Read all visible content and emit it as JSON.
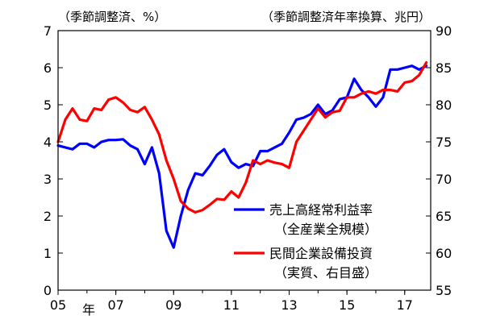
{
  "chart_data": {
    "type": "line",
    "title_left": "（季節調整済、%）",
    "title_right": "（季節調整済年率換算、兆円）",
    "x_unit_label": "年",
    "x_ticks": [
      {
        "x": 2005.0,
        "label": "05"
      },
      {
        "x": 2007.0,
        "label": "07"
      },
      {
        "x": 2009.0,
        "label": "09"
      },
      {
        "x": 2011.0,
        "label": "11"
      },
      {
        "x": 2013.0,
        "label": "13"
      },
      {
        "x": 2015.0,
        "label": "15"
      },
      {
        "x": 2017.0,
        "label": "17"
      }
    ],
    "xlim": [
      2005.0,
      2017.9
    ],
    "y_left": {
      "ticks": [
        0,
        1,
        2,
        3,
        4,
        5,
        6,
        7
      ],
      "lim": [
        0,
        7
      ]
    },
    "y_right": {
      "ticks": [
        55,
        60,
        65,
        70,
        75,
        80,
        85,
        90
      ],
      "lim": [
        55,
        90
      ]
    },
    "series": [
      {
        "name": "売上高経常利益率",
        "legend_lines": [
          "売上高経常利益率",
          "（全産業全規模）"
        ],
        "axis": "left",
        "color": "#0000ff",
        "x": [
          2005.0,
          2005.25,
          2005.5,
          2005.75,
          2006.0,
          2006.25,
          2006.5,
          2006.75,
          2007.0,
          2007.25,
          2007.5,
          2007.75,
          2008.0,
          2008.25,
          2008.5,
          2008.75,
          2009.0,
          2009.25,
          2009.5,
          2009.75,
          2010.0,
          2010.25,
          2010.5,
          2010.75,
          2011.0,
          2011.25,
          2011.5,
          2011.75,
          2012.0,
          2012.25,
          2012.5,
          2012.75,
          2013.0,
          2013.25,
          2013.5,
          2013.75,
          2014.0,
          2014.25,
          2014.5,
          2014.75,
          2015.0,
          2015.25,
          2015.5,
          2015.75,
          2016.0,
          2016.25,
          2016.5,
          2016.75,
          2017.0,
          2017.25,
          2017.5,
          2017.75
        ],
        "values": [
          3.9,
          3.85,
          3.8,
          3.95,
          3.95,
          3.85,
          4.0,
          4.05,
          4.05,
          4.07,
          3.9,
          3.8,
          3.4,
          3.85,
          3.15,
          1.6,
          1.15,
          2.0,
          2.7,
          3.15,
          3.1,
          3.35,
          3.65,
          3.8,
          3.45,
          3.3,
          3.4,
          3.35,
          3.75,
          3.75,
          3.85,
          3.95,
          4.25,
          4.6,
          4.65,
          4.75,
          5.0,
          4.75,
          4.85,
          5.15,
          5.2,
          5.7,
          5.4,
          5.2,
          4.95,
          5.2,
          5.95,
          5.95,
          6.0,
          6.05,
          5.95,
          6.05
        ]
      },
      {
        "name": "民間企業設備投資",
        "legend_lines": [
          "民間企業設備投資",
          "（実質、右目盛）"
        ],
        "axis": "right",
        "color": "#ff0000",
        "x": [
          2005.0,
          2005.25,
          2005.5,
          2005.75,
          2006.0,
          2006.25,
          2006.5,
          2006.75,
          2007.0,
          2007.25,
          2007.5,
          2007.75,
          2008.0,
          2008.25,
          2008.5,
          2008.75,
          2009.0,
          2009.25,
          2009.5,
          2009.75,
          2010.0,
          2010.25,
          2010.5,
          2010.75,
          2011.0,
          2011.25,
          2011.5,
          2011.75,
          2012.0,
          2012.25,
          2012.5,
          2012.75,
          2013.0,
          2013.25,
          2013.5,
          2013.75,
          2014.0,
          2014.25,
          2014.5,
          2014.75,
          2015.0,
          2015.25,
          2015.5,
          2015.75,
          2016.0,
          2016.25,
          2016.5,
          2016.75,
          2017.0,
          2017.25,
          2017.5,
          2017.75
        ],
        "values": [
          75.0,
          78.0,
          79.5,
          78.0,
          77.8,
          79.5,
          79.3,
          80.7,
          81.0,
          80.3,
          79.3,
          79.0,
          79.7,
          78.0,
          76.0,
          72.5,
          70.0,
          67.0,
          66.0,
          65.5,
          65.8,
          66.5,
          67.3,
          67.2,
          68.3,
          67.5,
          69.5,
          72.5,
          72.0,
          72.5,
          72.2,
          72.0,
          71.5,
          75.0,
          76.5,
          78.0,
          79.5,
          78.3,
          79.0,
          79.2,
          81.0,
          81.0,
          81.5,
          81.8,
          81.5,
          82.0,
          82.0,
          81.8,
          83.0,
          83.2,
          84.0,
          85.7
        ]
      }
    ]
  }
}
